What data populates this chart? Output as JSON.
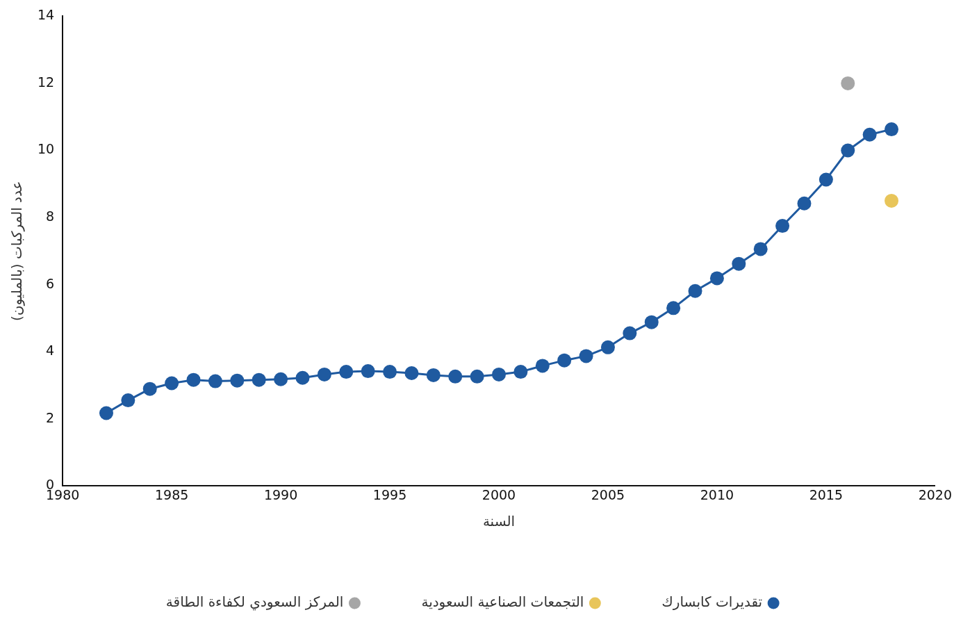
{
  "chart_data": {
    "type": "line",
    "xlabel": "السنة",
    "ylabel": "عدد المركبات (بالمليون)",
    "xlim": [
      1980,
      2020
    ],
    "xticks": [
      1980,
      1985,
      1990,
      1995,
      2000,
      2005,
      2010,
      2015,
      2020
    ],
    "ylim": [
      0,
      14
    ],
    "yticks": [
      0,
      2,
      4,
      6,
      8,
      10,
      12,
      14
    ],
    "grid": false,
    "legend": "bottom",
    "marker": "circle",
    "line_style": "solid",
    "series": [
      {
        "name": "تقديرات كابسارك",
        "color": "#1f5aa0",
        "x": [
          1982,
          1983,
          1984,
          1985,
          1986,
          1987,
          1988,
          1989,
          1990,
          1991,
          1992,
          1993,
          1994,
          1995,
          1996,
          1997,
          1998,
          1999,
          2000,
          2001,
          2002,
          2003,
          2004,
          2005,
          2006,
          2007,
          2008,
          2009,
          2010,
          2011,
          2012,
          2013,
          2014,
          2015,
          2016,
          2017,
          2018
        ],
        "values": [
          2.17,
          2.55,
          2.89,
          3.06,
          3.16,
          3.12,
          3.14,
          3.16,
          3.18,
          3.22,
          3.32,
          3.4,
          3.42,
          3.4,
          3.36,
          3.3,
          3.26,
          3.26,
          3.32,
          3.4,
          3.58,
          3.74,
          3.87,
          4.13,
          4.55,
          4.88,
          5.3,
          5.81,
          6.19,
          6.62,
          7.06,
          7.75,
          8.42,
          9.13,
          10.0,
          10.47,
          10.63
        ]
      },
      {
        "name": "التجمعات الصناعية السعودية",
        "color": "#e8c55a",
        "x": [
          2018
        ],
        "values": [
          8.5
        ]
      },
      {
        "name": "المركز السعودي لكفاءة الطاقة",
        "color": "#a6a6a6",
        "x": [
          2016
        ],
        "values": [
          12.0
        ]
      }
    ]
  }
}
